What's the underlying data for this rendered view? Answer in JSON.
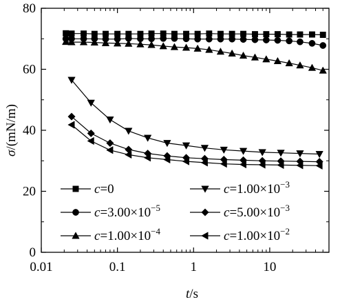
{
  "chart_data": {
    "type": "line",
    "xlabel": {
      "var": "t",
      "unit": "/s"
    },
    "ylabel": {
      "var": "σ",
      "unit": "/(mN/m)"
    },
    "x_scale": "log",
    "xlim": [
      0.01,
      60
    ],
    "ylim": [
      0,
      80
    ],
    "x_ticks": [
      {
        "value": 0.01,
        "label": "0.01"
      },
      {
        "value": 0.1,
        "label": "0.1"
      },
      {
        "value": 1,
        "label": "1"
      },
      {
        "value": 10,
        "label": "10"
      }
    ],
    "y_ticks": [
      {
        "value": 0,
        "label": "0"
      },
      {
        "value": 20,
        "label": "20"
      },
      {
        "value": 40,
        "label": "40"
      },
      {
        "value": 60,
        "label": "60"
      },
      {
        "value": 80,
        "label": "80"
      }
    ],
    "grid": false,
    "legend_position": "bottom-left, two columns",
    "series": [
      {
        "name": "c=0",
        "label": {
          "var": "c",
          "value": "=0",
          "exp": ""
        },
        "marker": "square",
        "color": "#000000",
        "x": [
          0.021,
          0.025,
          0.036,
          0.05,
          0.07,
          0.1,
          0.14,
          0.2,
          0.28,
          0.4,
          0.56,
          0.8,
          1.13,
          1.6,
          2.26,
          3.2,
          4.5,
          6.4,
          9,
          12.7,
          18,
          25,
          36,
          50
        ],
        "y": [
          71.8,
          71.7,
          71.7,
          71.6,
          71.6,
          71.6,
          71.6,
          71.6,
          71.7,
          71.7,
          71.6,
          71.6,
          71.6,
          71.7,
          71.6,
          71.6,
          71.6,
          71.5,
          71.5,
          71.5,
          71.4,
          71.4,
          71.4,
          71.3
        ]
      },
      {
        "name": "c=3.00×10^-5",
        "label": {
          "var": "c",
          "value": "=3.00×10",
          "exp": "−5"
        },
        "marker": "circle",
        "color": "#000000",
        "x": [
          0.021,
          0.025,
          0.036,
          0.05,
          0.07,
          0.1,
          0.14,
          0.2,
          0.28,
          0.4,
          0.56,
          0.8,
          1.13,
          1.6,
          2.26,
          3.2,
          4.5,
          6.4,
          9,
          12.7,
          18,
          25,
          36,
          50
        ],
        "y": [
          70.0,
          70.0,
          70.0,
          70.0,
          69.9,
          69.9,
          70.1,
          70.0,
          70.0,
          70.1,
          70.1,
          70.0,
          69.9,
          69.9,
          69.9,
          69.9,
          69.8,
          69.7,
          69.6,
          69.5,
          69.3,
          69.0,
          68.5,
          67.8
        ]
      },
      {
        "name": "c=1.00×10^-4",
        "label": {
          "var": "c",
          "value": "=1.00×10",
          "exp": "−4"
        },
        "marker": "triangle-up",
        "color": "#000000",
        "x": [
          0.021,
          0.025,
          0.036,
          0.05,
          0.07,
          0.1,
          0.14,
          0.2,
          0.28,
          0.4,
          0.56,
          0.8,
          1.13,
          1.6,
          2.26,
          3.2,
          4.5,
          6.4,
          9,
          12.7,
          18,
          25,
          36,
          50
        ],
        "y": [
          69.0,
          68.9,
          68.9,
          68.8,
          68.6,
          68.5,
          68.4,
          68.2,
          68.0,
          67.6,
          67.3,
          67.1,
          66.8,
          66.4,
          65.8,
          65.2,
          64.5,
          63.9,
          63.3,
          62.7,
          62.0,
          61.3,
          60.5,
          59.6
        ]
      },
      {
        "name": "c=1.00×10^-3",
        "label": {
          "var": "c",
          "value": "=1.00×10",
          "exp": "−3"
        },
        "marker": "triangle-down",
        "color": "#000000",
        "x": [
          0.025,
          0.045,
          0.08,
          0.14,
          0.25,
          0.45,
          0.8,
          1.4,
          2.5,
          4.5,
          8,
          14,
          25,
          45
        ],
        "y": [
          56.5,
          49.0,
          43.5,
          39.8,
          37.5,
          35.8,
          35.0,
          34.2,
          33.6,
          33.2,
          32.8,
          32.6,
          32.4,
          32.2
        ]
      },
      {
        "name": "c=5.00×10^-3",
        "label": {
          "var": "c",
          "value": "=5.00×10",
          "exp": "−3"
        },
        "marker": "diamond",
        "color": "#000000",
        "x": [
          0.025,
          0.045,
          0.08,
          0.14,
          0.25,
          0.45,
          0.8,
          1.4,
          2.5,
          4.5,
          8,
          14,
          25,
          45
        ],
        "y": [
          44.5,
          39.0,
          35.8,
          33.7,
          32.4,
          31.6,
          31.0,
          30.7,
          30.4,
          30.2,
          30.0,
          29.9,
          29.8,
          29.7
        ]
      },
      {
        "name": "c=1.00×10^-2",
        "label": {
          "var": "c",
          "value": "=1.00×10",
          "exp": "−2"
        },
        "marker": "triangle-left",
        "color": "#000000",
        "x": [
          0.025,
          0.045,
          0.08,
          0.14,
          0.25,
          0.45,
          0.8,
          1.4,
          2.5,
          4.5,
          8,
          14,
          25,
          45
        ],
        "y": [
          41.8,
          36.5,
          33.5,
          32.0,
          31.0,
          30.4,
          29.8,
          29.4,
          29.0,
          28.8,
          28.7,
          28.6,
          28.5,
          28.4
        ]
      }
    ]
  }
}
